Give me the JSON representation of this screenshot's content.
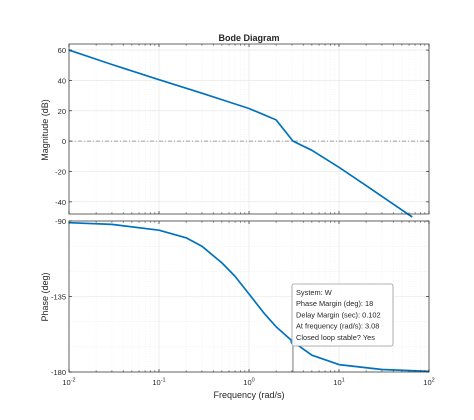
{
  "chart_data": {
    "type": "line",
    "title": "Bode Diagram",
    "xlabel": "Frequency  (rad/s)",
    "x_scale": "log",
    "xlim": [
      0.01,
      100
    ],
    "x_ticks": [
      {
        "value": 0.01,
        "base": "10",
        "exp": "-2"
      },
      {
        "value": 0.1,
        "base": "10",
        "exp": "-1"
      },
      {
        "value": 1,
        "base": "10",
        "exp": "0"
      },
      {
        "value": 10,
        "base": "10",
        "exp": "1"
      },
      {
        "value": 100,
        "base": "10",
        "exp": "2"
      }
    ],
    "grid": true,
    "colors": {
      "line": "#0072bd",
      "axis": "#262626",
      "grid": "#e3e3e3",
      "zero_line": "#7f7f7f",
      "background": "#ffffff"
    },
    "subplots": [
      {
        "name": "magnitude",
        "ylabel": "Magnitude (dB)",
        "ylim": [
          -48,
          64
        ],
        "y_ticks": [
          60,
          40,
          20,
          0,
          -20,
          -40
        ],
        "y_tick_labels": [
          "60",
          "40",
          "20",
          "0",
          "-20",
          "-40"
        ],
        "reference_line": 0,
        "series": [
          {
            "x": [
              0.01,
              0.03,
              0.1,
              0.3,
              0.6,
              1,
              2,
              3.08,
              5,
              10,
              20,
              40,
              65
            ],
            "y": [
              60,
              50.5,
              40.5,
              31.6,
              25.8,
              21.5,
              14,
              0,
              -6,
              -17.2,
              -29.3,
              -41.5,
              -50
            ]
          }
        ]
      },
      {
        "name": "phase",
        "ylabel": "Phase (deg)",
        "ylim": [
          -180,
          -90
        ],
        "y_ticks": [
          -90,
          -135,
          -180
        ],
        "y_tick_labels": [
          "-90",
          "-135",
          "-180"
        ],
        "series": [
          {
            "x": [
              0.01,
              0.03,
              0.1,
              0.2,
              0.3,
              0.5,
              0.7,
              1,
              1.5,
              2,
              3.08,
              5,
              10,
              30,
              100
            ],
            "y": [
              -91,
              -92,
              -95.5,
              -100,
              -105,
              -115,
              -123,
              -133.5,
              -145.5,
              -153,
              -162,
              -170,
              -175.6,
              -178.5,
              -179.6
            ]
          }
        ],
        "marker": {
          "x": 3.08,
          "y": -162
        }
      }
    ],
    "annotation": {
      "lines": [
        "System: W",
        "Phase Margin (deg): 18",
        "Delay Margin (sec): 0.102",
        "At frequency (rad/s): 3.08",
        "Closed loop stable? Yes"
      ]
    }
  }
}
